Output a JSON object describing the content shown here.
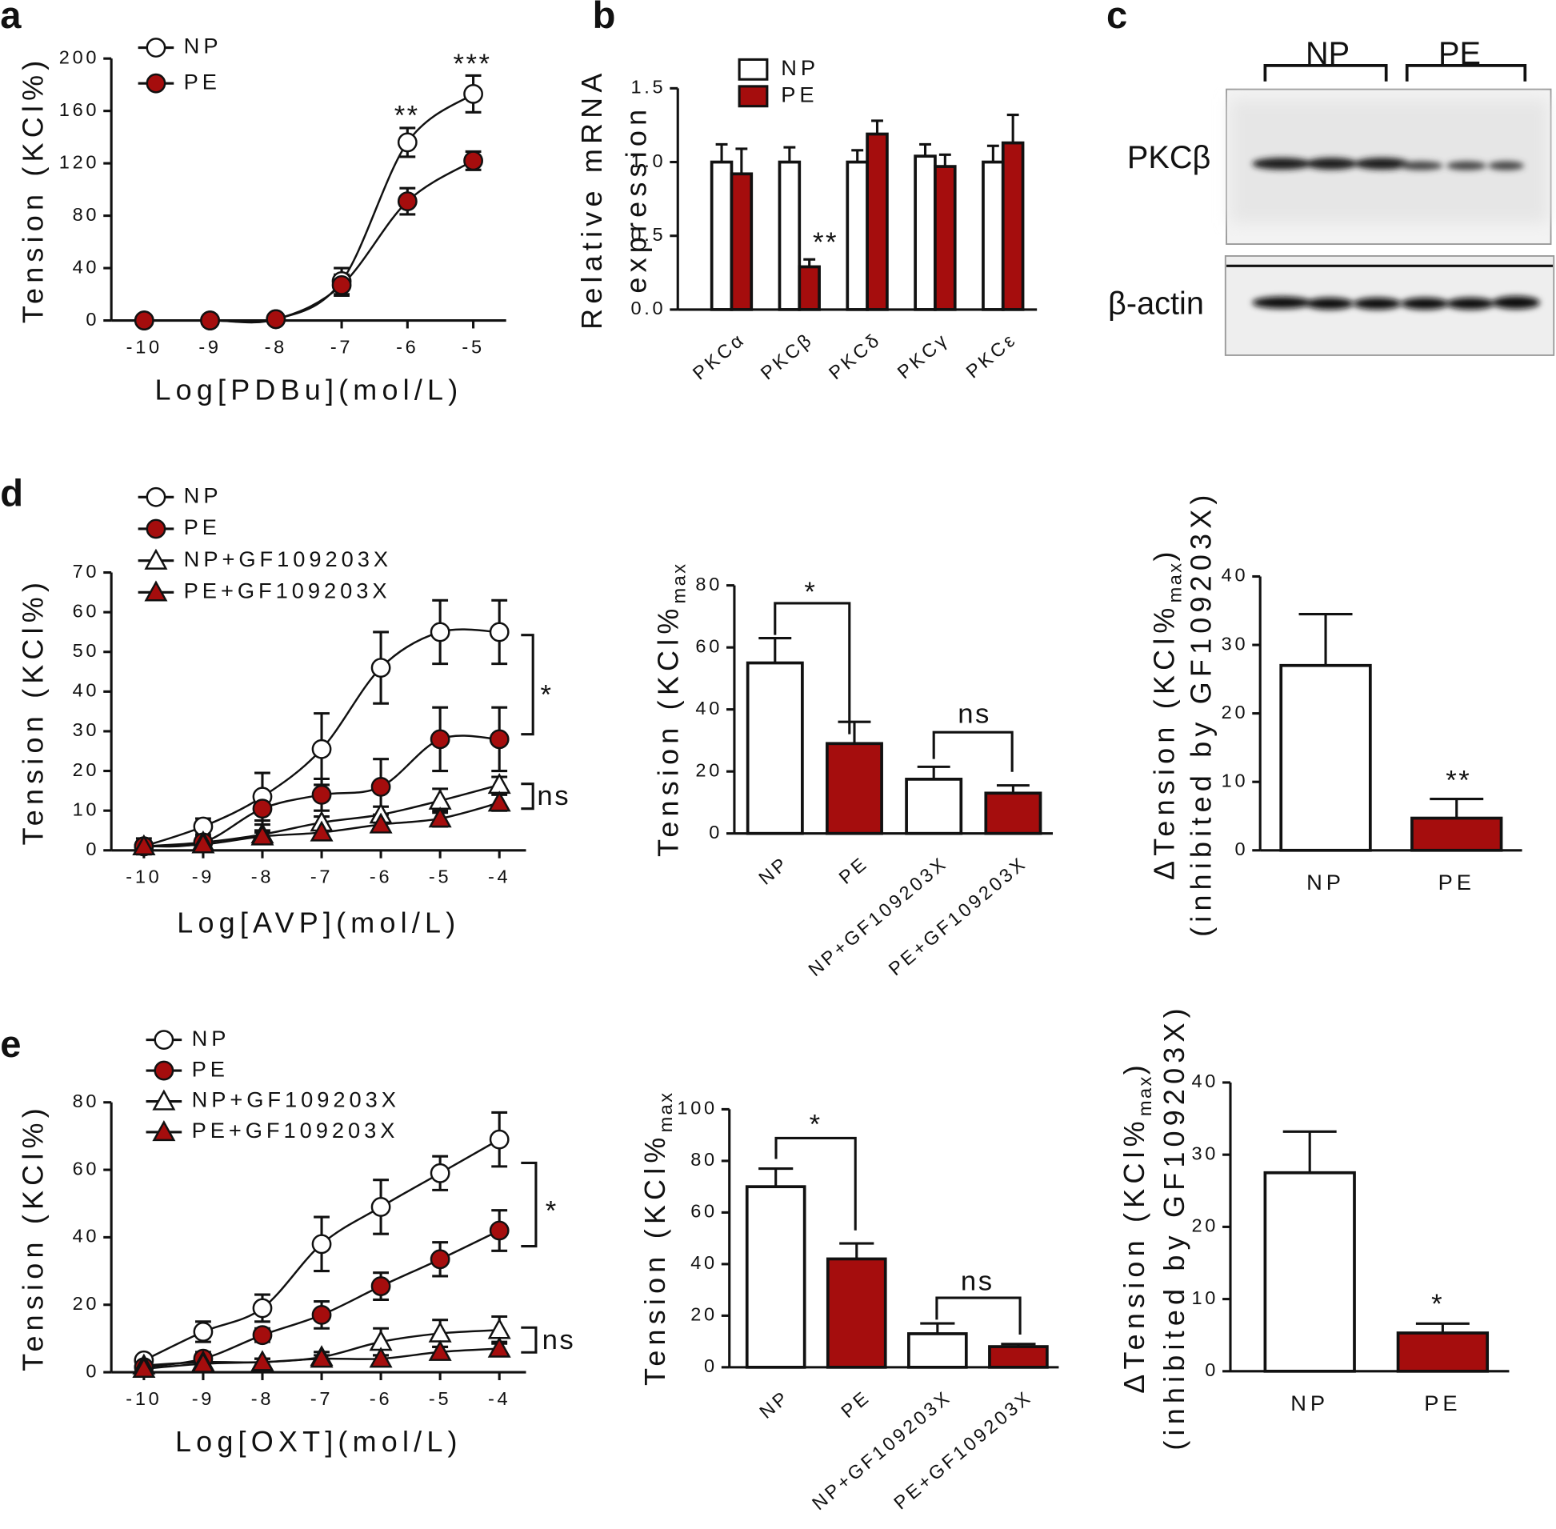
{
  "chart_data": [
    {
      "type": "line",
      "panel": "a",
      "ylabel": "Tension (KCl%)",
      "xlabel": "Log[PDBu](mol/L)",
      "x": [
        -10,
        -9,
        -8,
        -7,
        -6,
        -5
      ],
      "xlim": [
        -10.5,
        -4.5
      ],
      "xticks": [
        -10,
        -9,
        -8,
        -7,
        -6,
        -5
      ],
      "ylim": [
        0,
        200
      ],
      "yticks": [
        0,
        40,
        80,
        120,
        160,
        200
      ],
      "series": [
        {
          "name": "NP",
          "color": "#ffffff",
          "marker": "circle",
          "values": [
            0,
            0,
            1,
            30,
            136,
            173
          ],
          "errors": [
            0,
            0,
            1,
            10,
            11,
            14
          ]
        },
        {
          "name": "PE",
          "color": "#a50d0d",
          "marker": "circle",
          "values": [
            0,
            0,
            1,
            27,
            91,
            122
          ],
          "errors": [
            0,
            0,
            1,
            8,
            10,
            7
          ]
        }
      ],
      "annotations": [
        "**",
        "***"
      ]
    },
    {
      "type": "bar",
      "panel": "b",
      "ylabel": [
        "Relative mRNA",
        "expression"
      ],
      "categories": [
        "PKCα",
        "PKCβ",
        "PKCδ",
        "PKCγ",
        "PKCε"
      ],
      "ylim": [
        0,
        1.5
      ],
      "yticks": [
        {
          "value": 0,
          "label": "0.0"
        },
        0.5,
        {
          "value": 1,
          "label": "1.0"
        },
        1.5
      ],
      "series": [
        {
          "name": "NP",
          "color": "#ffffff",
          "values": [
            1.0,
            1.0,
            1.0,
            1.04,
            1.0
          ],
          "errors": [
            0.12,
            0.1,
            0.08,
            0.08,
            0.11
          ]
        },
        {
          "name": "PE",
          "color": "#a50d0d",
          "values": [
            0.92,
            0.29,
            1.19,
            0.97,
            1.13
          ],
          "errors": [
            0.17,
            0.05,
            0.09,
            0.08,
            0.19
          ]
        }
      ],
      "annotations": [
        "**"
      ]
    },
    {
      "type": "line",
      "panel": "d",
      "ylabel": "Tension (KCl%)",
      "xlabel": "Log[AVP](mol/L)",
      "x": [
        -10,
        -9,
        -8,
        -7,
        -6,
        -5,
        -4
      ],
      "xlim": [
        -10.55,
        -3.55
      ],
      "xticks": [
        -10,
        -9,
        -8,
        -7,
        -6,
        -5,
        -4
      ],
      "ylim": [
        0,
        70
      ],
      "yticks": [
        0,
        10,
        20,
        30,
        40,
        50,
        60,
        70
      ],
      "series": [
        {
          "name": "NP",
          "color": "#ffffff",
          "marker": "circle",
          "values": [
            1,
            6,
            13.5,
            25.5,
            46,
            55,
            55
          ],
          "errors": [
            2,
            2,
            6,
            9,
            9,
            8,
            8
          ]
        },
        {
          "name": "PE",
          "color": "#a50d0d",
          "marker": "circle",
          "values": [
            1,
            2,
            10.5,
            14,
            16,
            28,
            28
          ],
          "errors": [
            1,
            1.5,
            4,
            4,
            7,
            8,
            8
          ]
        },
        {
          "name": "NP+GF109203X",
          "color": "#ffffff",
          "marker": "triangle",
          "values": [
            1,
            2,
            4,
            7,
            9,
            12.5,
            16.5
          ],
          "errors": [
            1,
            1,
            1,
            1.5,
            2,
            3,
            2
          ]
        },
        {
          "name": "PE+GF109203X",
          "color": "#a50d0d",
          "marker": "triangle",
          "values": [
            1,
            1.5,
            3.5,
            4.5,
            6.5,
            8,
            12
          ],
          "errors": [
            1,
            1,
            1,
            1,
            1.5,
            2,
            2
          ]
        }
      ],
      "annotations": [
        "*",
        "ns"
      ]
    },
    {
      "type": "bar",
      "ylabel": "Tension (KCl%",
      "ylabel_sub": "max",
      "categories": [
        "NP",
        "PE",
        "NP+GF109203X",
        "PE+GF109203X"
      ],
      "ylim": [
        0,
        80
      ],
      "yticks": [
        0,
        20,
        40,
        60,
        80
      ],
      "series": [
        {
          "colors": [
            "#ffffff",
            "#a50d0d",
            "#ffffff",
            "#a50d0d"
          ],
          "values": [
            55,
            29,
            17.5,
            13
          ],
          "errors": [
            8,
            7,
            4,
            2.5
          ]
        }
      ],
      "annotations": [
        "*",
        "ns"
      ]
    },
    {
      "type": "bar",
      "ylabel": [
        "ΔTension (KCl%",
        "(inhibited by GF109203X)"
      ],
      "ylabel_sub": "max",
      "ylabel_end": ")",
      "categories": [
        "NP",
        "PE"
      ],
      "ylim": [
        0,
        40
      ],
      "yticks": [
        0,
        10,
        20,
        30,
        40
      ],
      "series": [
        {
          "colors": [
            "#ffffff",
            "#a50d0d"
          ],
          "values": [
            27,
            4.7
          ],
          "errors": [
            7.5,
            2.8
          ]
        }
      ],
      "annotations": [
        "**"
      ]
    },
    {
      "type": "line",
      "panel": "e",
      "ylabel": "Tension (KCl%)",
      "xlabel": "Log[OXT](mol/L)",
      "x": [
        -10,
        -9,
        -8,
        -7,
        -6,
        -5,
        -4
      ],
      "xlim": [
        -10.55,
        -3.55
      ],
      "xticks": [
        -10,
        -9,
        -8,
        -7,
        -6,
        -5,
        -4
      ],
      "ylim": [
        0,
        80
      ],
      "yticks": [
        0,
        20,
        40,
        60,
        80
      ],
      "series": [
        {
          "name": "NP",
          "color": "#ffffff",
          "marker": "circle",
          "values": [
            3.5,
            12,
            19,
            38,
            49,
            59,
            69
          ],
          "errors": [
            1,
            3,
            4,
            8,
            8,
            5,
            8
          ]
        },
        {
          "name": "PE",
          "color": "#a50d0d",
          "marker": "circle",
          "values": [
            1.5,
            4,
            11,
            17,
            25.5,
            33.5,
            42
          ],
          "errors": [
            1,
            2,
            2,
            4,
            4,
            5,
            6
          ]
        },
        {
          "name": "NP+GF109203X",
          "color": "#ffffff",
          "marker": "triangle",
          "values": [
            2,
            3,
            3,
            4.5,
            9,
            11.5,
            12.5
          ],
          "errors": [
            1,
            1,
            1,
            1.5,
            4,
            4,
            4
          ]
        },
        {
          "name": "PE+GF109203X",
          "color": "#a50d0d",
          "marker": "triangle",
          "values": [
            1,
            2.5,
            3,
            4,
            4,
            6,
            7
          ],
          "errors": [
            1,
            1,
            1,
            1,
            1,
            1.5,
            2
          ]
        }
      ],
      "annotations": [
        "*",
        "ns"
      ]
    },
    {
      "type": "bar",
      "ylabel": "Tension (KCl%",
      "ylabel_sub": "max",
      "categories": [
        "NP",
        "PE",
        "NP+GF109203X",
        "PE+GF109203X"
      ],
      "ylim": [
        0,
        100
      ],
      "yticks": [
        0,
        20,
        40,
        60,
        80,
        100
      ],
      "series": [
        {
          "colors": [
            "#ffffff",
            "#a50d0d",
            "#ffffff",
            "#a50d0d"
          ],
          "values": [
            70,
            42,
            13,
            8
          ],
          "errors": [
            7,
            6,
            4,
            1
          ]
        }
      ],
      "annotations": [
        "*",
        "ns"
      ]
    },
    {
      "type": "bar",
      "ylabel": [
        "ΔTension (KCl%",
        "(inhibited by GF109203X)"
      ],
      "ylabel_sub": "max",
      "ylabel_end": ")",
      "categories": [
        "NP",
        "PE"
      ],
      "ylim": [
        0,
        40
      ],
      "yticks": [
        0,
        10,
        20,
        30,
        40
      ],
      "series": [
        {
          "colors": [
            "#ffffff",
            "#a50d0d"
          ],
          "values": [
            27.5,
            5.3
          ],
          "errors": [
            5.7,
            1.3
          ]
        }
      ],
      "annotations": [
        "*"
      ]
    }
  ],
  "blot": {
    "panel": "c",
    "groups": [
      "NP",
      "PE"
    ],
    "rows": [
      "PKCβ",
      "β-actin"
    ]
  }
}
